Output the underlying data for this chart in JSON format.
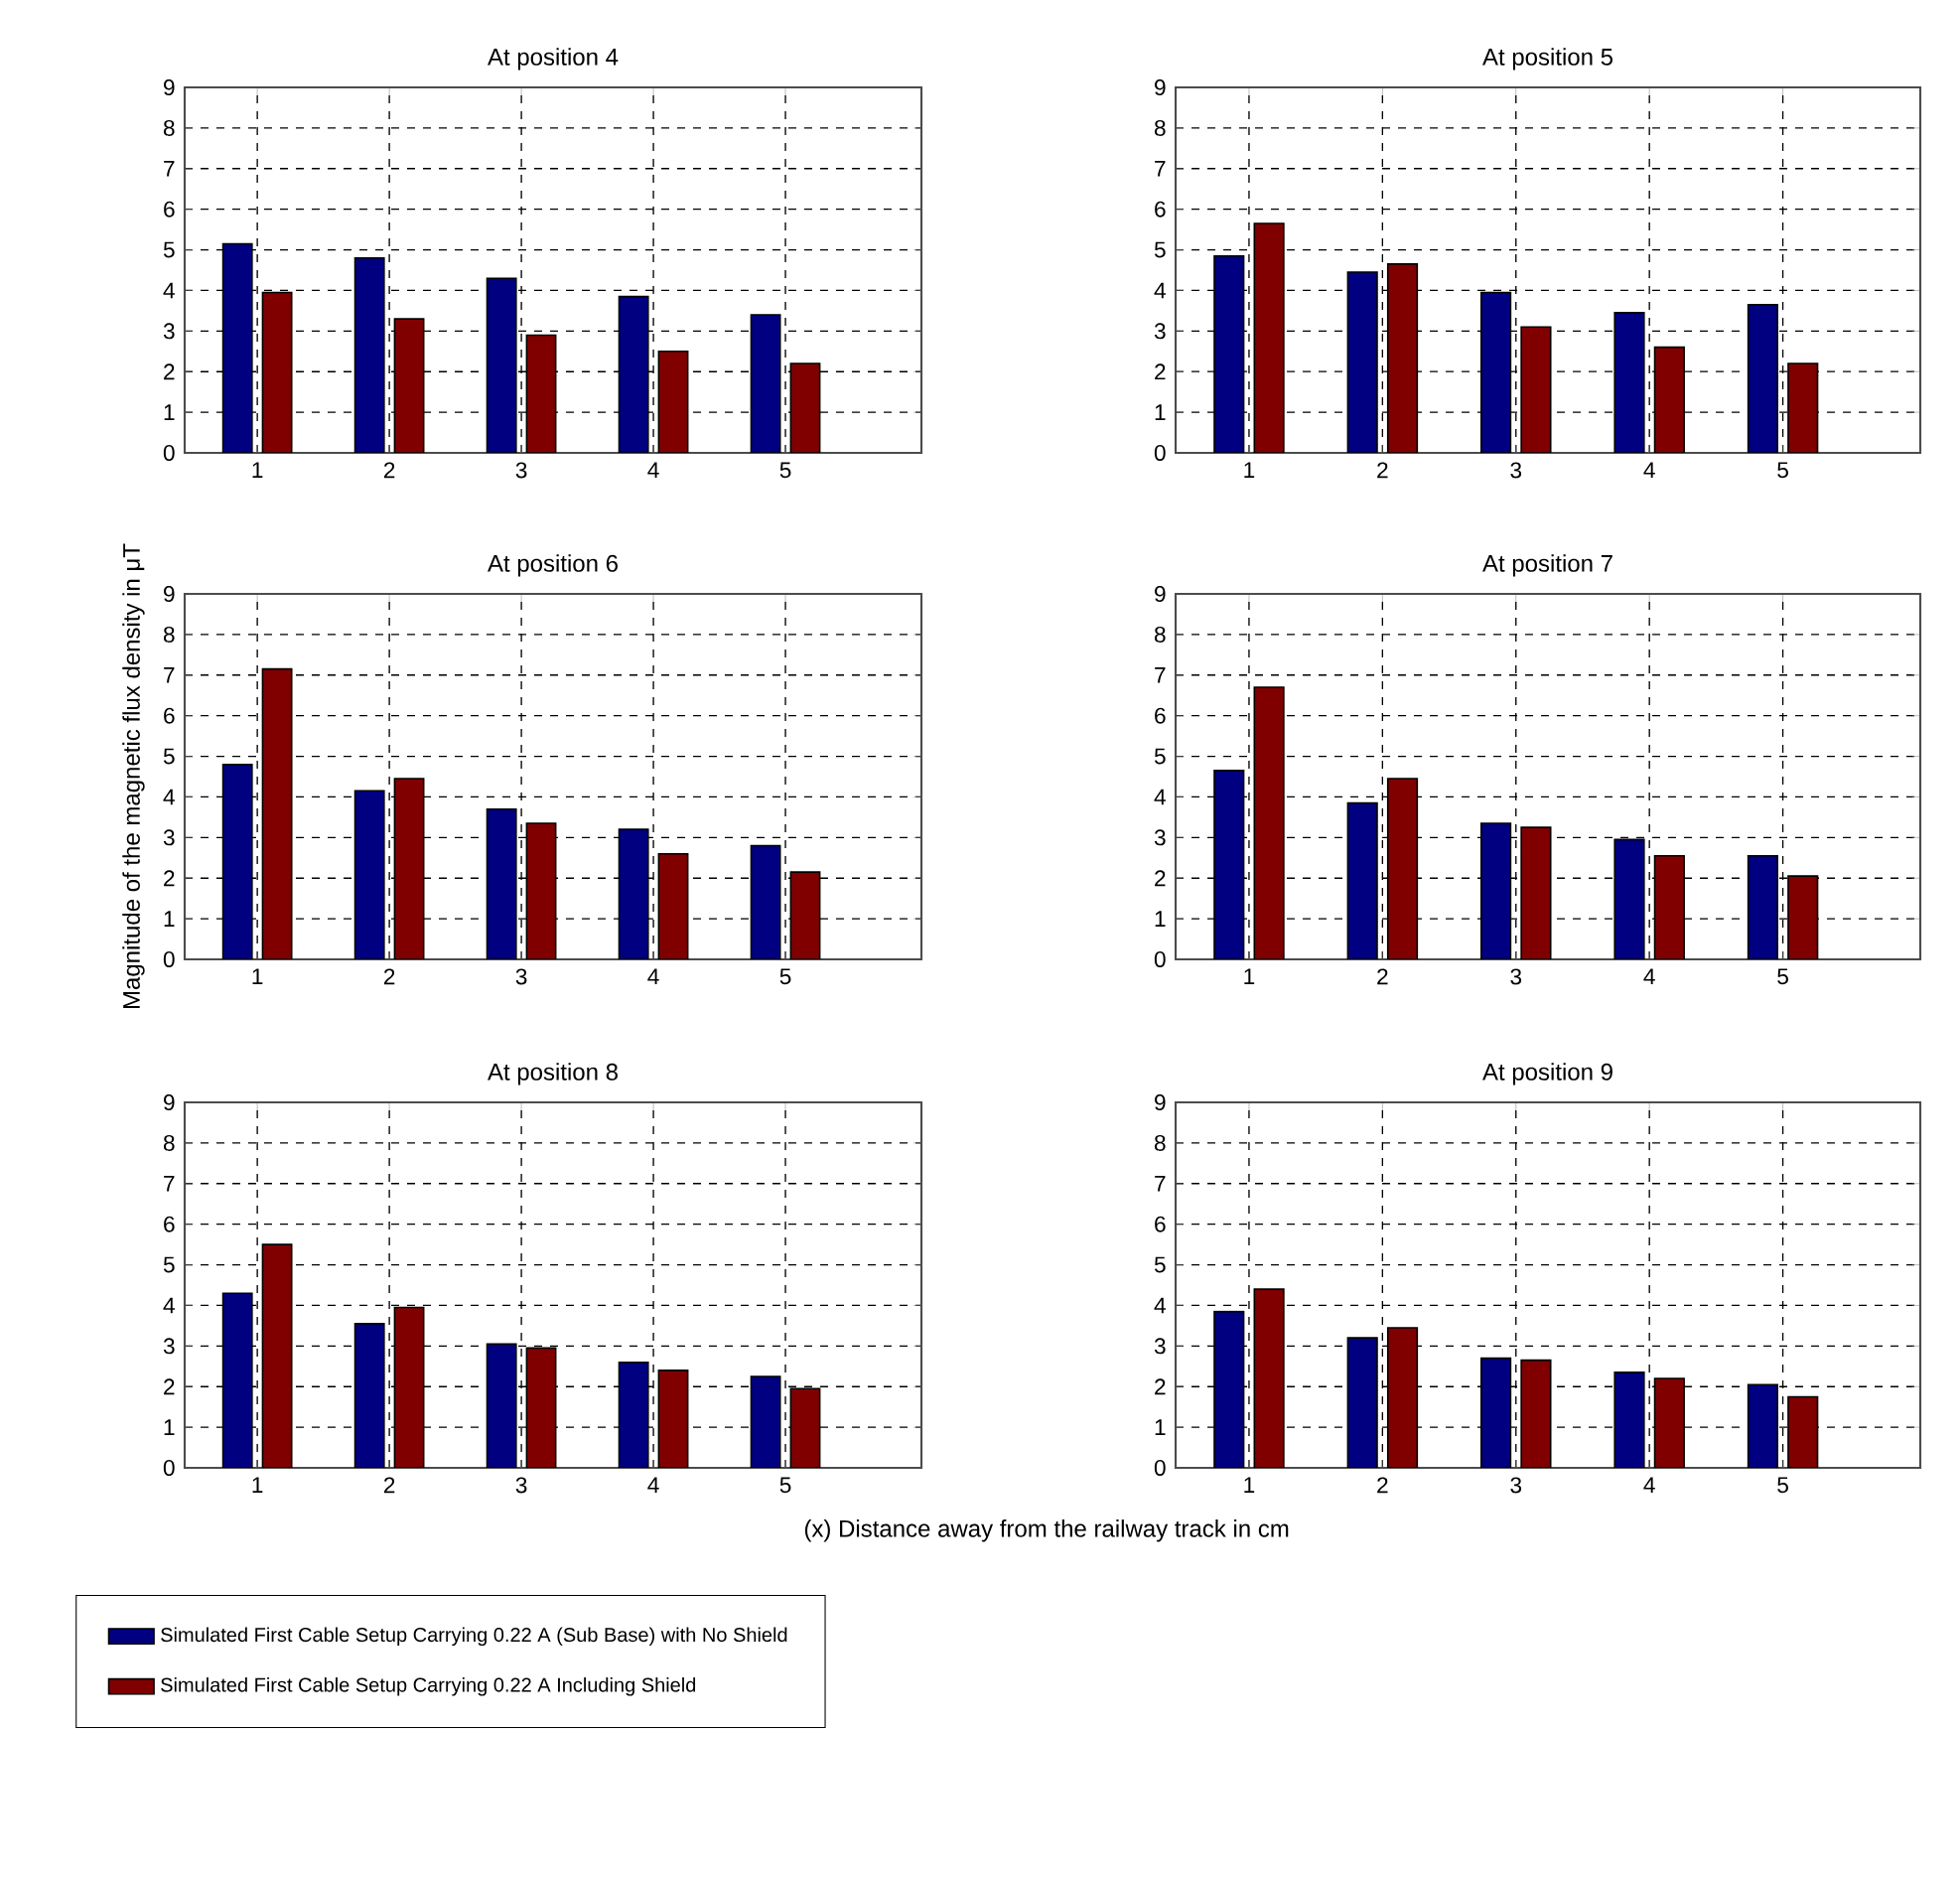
{
  "chart_data": [
    {
      "type": "bar",
      "title": "At position 4",
      "categories": [
        "1",
        "2",
        "3",
        "4",
        "5"
      ],
      "ylim": [
        0,
        9
      ],
      "yticks": [
        0,
        1,
        2,
        3,
        4,
        5,
        6,
        7,
        8,
        9
      ],
      "grid": true,
      "legend": "bottom",
      "series": [
        {
          "name": "Simulated First Cable Setup Carrying 0.22 A (Sub Base) with No Shield",
          "color": "#000080",
          "values": [
            5.15,
            4.8,
            4.3,
            3.85,
            3.4
          ]
        },
        {
          "name": "Simulated First Cable Setup Carrying 0.22 A Including Shield",
          "color": "#800000",
          "values": [
            3.95,
            3.3,
            2.9,
            2.5,
            2.2
          ]
        }
      ]
    },
    {
      "type": "bar",
      "title": "At position 5",
      "categories": [
        "1",
        "2",
        "3",
        "4",
        "5"
      ],
      "ylim": [
        0,
        9
      ],
      "yticks": [
        0,
        1,
        2,
        3,
        4,
        5,
        6,
        7,
        8,
        9
      ],
      "grid": true,
      "series": [
        {
          "color": "#000080",
          "values": [
            4.85,
            4.45,
            3.95,
            3.45,
            3.65
          ]
        },
        {
          "color": "#800000",
          "values": [
            5.65,
            4.65,
            3.1,
            2.6,
            2.2
          ]
        }
      ]
    },
    {
      "type": "bar",
      "title": "At position 6",
      "ylabel": "Magnitude of the magnetic flux density in μT",
      "categories": [
        "1",
        "2",
        "3",
        "4",
        "5"
      ],
      "ylim": [
        0,
        9
      ],
      "yticks": [
        0,
        1,
        2,
        3,
        4,
        5,
        6,
        7,
        8,
        9
      ],
      "grid": true,
      "series": [
        {
          "color": "#000080",
          "values": [
            4.8,
            4.15,
            3.7,
            3.2,
            2.8
          ]
        },
        {
          "color": "#800000",
          "values": [
            7.15,
            4.45,
            3.35,
            2.6,
            2.15
          ]
        }
      ]
    },
    {
      "type": "bar",
      "title": "At position 7",
      "categories": [
        "1",
        "2",
        "3",
        "4",
        "5"
      ],
      "ylim": [
        0,
        9
      ],
      "yticks": [
        0,
        1,
        2,
        3,
        4,
        5,
        6,
        7,
        8,
        9
      ],
      "grid": true,
      "series": [
        {
          "color": "#000080",
          "values": [
            4.65,
            3.85,
            3.35,
            2.95,
            2.55
          ]
        },
        {
          "color": "#800000",
          "values": [
            6.7,
            4.45,
            3.25,
            2.55,
            2.05
          ]
        }
      ]
    },
    {
      "type": "bar",
      "title": "At position 8",
      "xlabel": "(x) Distance away from the railway track in cm",
      "categories": [
        "1",
        "2",
        "3",
        "4",
        "5"
      ],
      "ylim": [
        0,
        9
      ],
      "yticks": [
        0,
        1,
        2,
        3,
        4,
        5,
        6,
        7,
        8,
        9
      ],
      "grid": true,
      "series": [
        {
          "color": "#000080",
          "values": [
            4.3,
            3.55,
            3.05,
            2.6,
            2.25
          ]
        },
        {
          "color": "#800000",
          "values": [
            5.5,
            3.95,
            2.95,
            2.4,
            1.95
          ]
        }
      ]
    },
    {
      "type": "bar",
      "title": "At position 9",
      "categories": [
        "1",
        "2",
        "3",
        "4",
        "5"
      ],
      "ylim": [
        0,
        9
      ],
      "yticks": [
        0,
        1,
        2,
        3,
        4,
        5,
        6,
        7,
        8,
        9
      ],
      "grid": true,
      "series": [
        {
          "color": "#000080",
          "values": [
            3.85,
            3.2,
            2.7,
            2.35,
            2.05
          ]
        },
        {
          "color": "#800000",
          "values": [
            4.4,
            3.45,
            2.65,
            2.2,
            1.75
          ]
        }
      ]
    }
  ]
}
